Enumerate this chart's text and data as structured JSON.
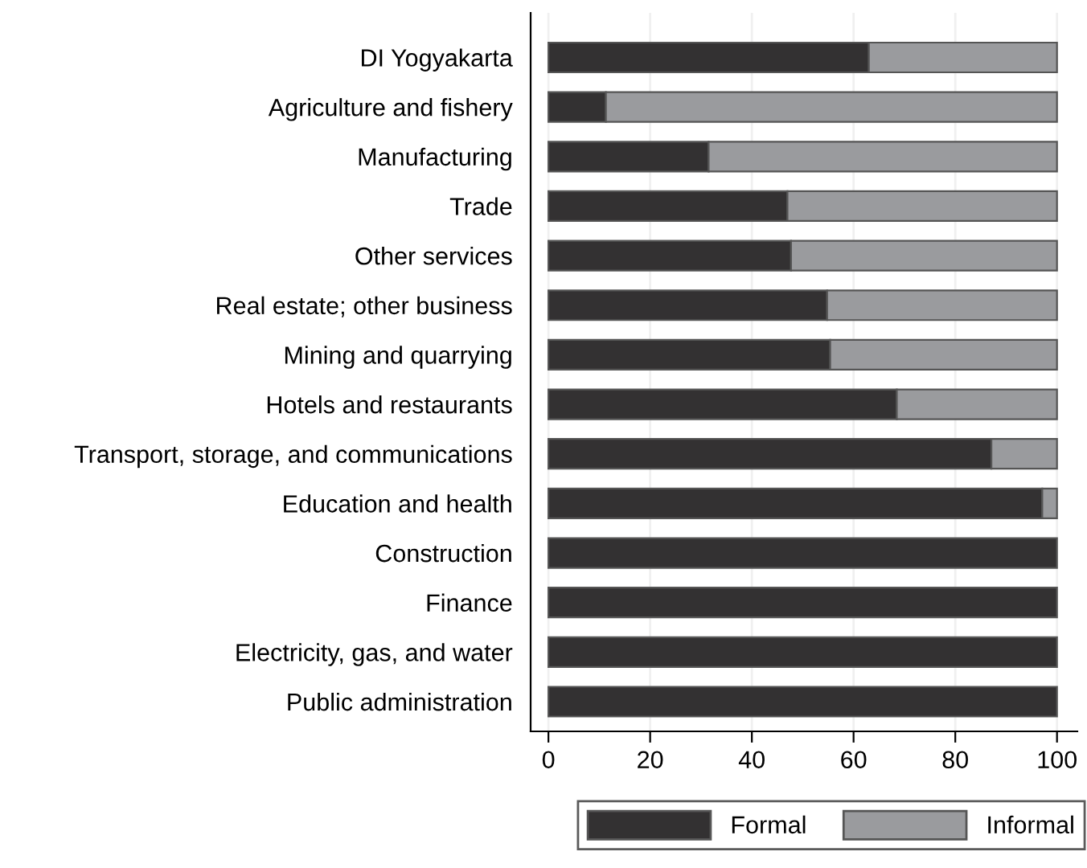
{
  "chart_data": {
    "type": "bar",
    "orientation": "horizontal",
    "stacked": true,
    "categories": [
      "DI Yogyakarta",
      "Agriculture and fishery",
      "Manufacturing",
      "Trade",
      "Other services",
      "Real estate; other business",
      "Mining and quarrying",
      "Hotels and restaurants",
      "Transport, storage, and communications",
      "Education and health",
      "Construction",
      "Finance",
      "Electricity, gas, and water",
      "Public administration"
    ],
    "series": [
      {
        "name": "Formal",
        "color": "#333132",
        "values": [
          63.0,
          11.3,
          31.5,
          47.0,
          47.7,
          54.8,
          55.4,
          68.5,
          87.1,
          97.1,
          100,
          100,
          100,
          100
        ]
      },
      {
        "name": "Informal",
        "color": "#9a9b9e",
        "values": [
          37.0,
          88.7,
          68.5,
          53.0,
          52.3,
          45.2,
          44.6,
          31.5,
          12.9,
          2.9,
          0,
          0,
          0,
          0
        ]
      }
    ],
    "xlim": [
      -3.5,
      104
    ],
    "xticks": [
      0,
      20,
      40,
      60,
      80,
      100
    ],
    "grid": "x",
    "legend": "bottom"
  }
}
